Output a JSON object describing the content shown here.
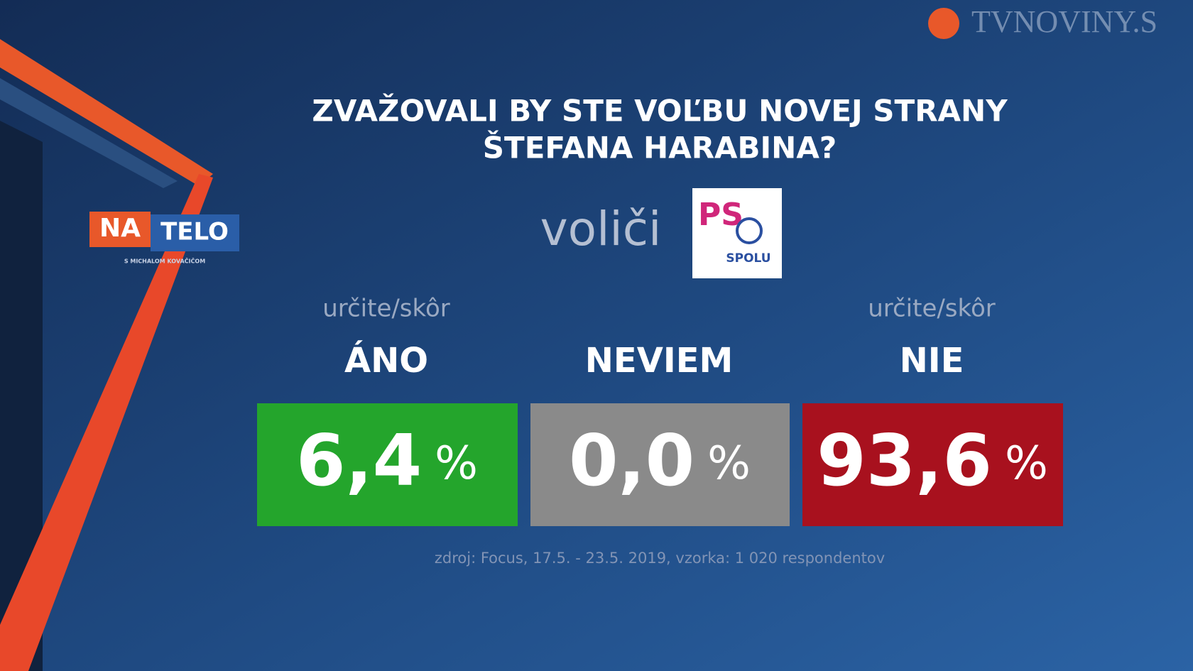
{
  "header": {
    "channel_logo": "TVNOVINY.S",
    "show_logo": {
      "part1": "NA",
      "part2": "TELO",
      "subtitle": "S MICHALOM KOVAČIČOM"
    }
  },
  "title": {
    "line1": "ZVAŽOVALI BY STE VOĽBU NOVEJ STRANY",
    "line2": "ŠTEFANA HARABINA?"
  },
  "voters": {
    "label": "voliči",
    "party_logo": {
      "mark": "PS",
      "name": "SPOLU"
    }
  },
  "answers": [
    {
      "qualifier": "určite/skôr",
      "label": "ÁNO",
      "value": "6,4",
      "unit": "%"
    },
    {
      "label": "NEVIEM",
      "value": "0,0",
      "unit": "%"
    },
    {
      "qualifier": "určite/skôr",
      "label": "NIE",
      "value": "93,6",
      "unit": "%"
    }
  ],
  "source": "zdroj: Focus, 17.5. - 23.5. 2019, vzorka: 1 020 respondentov"
}
